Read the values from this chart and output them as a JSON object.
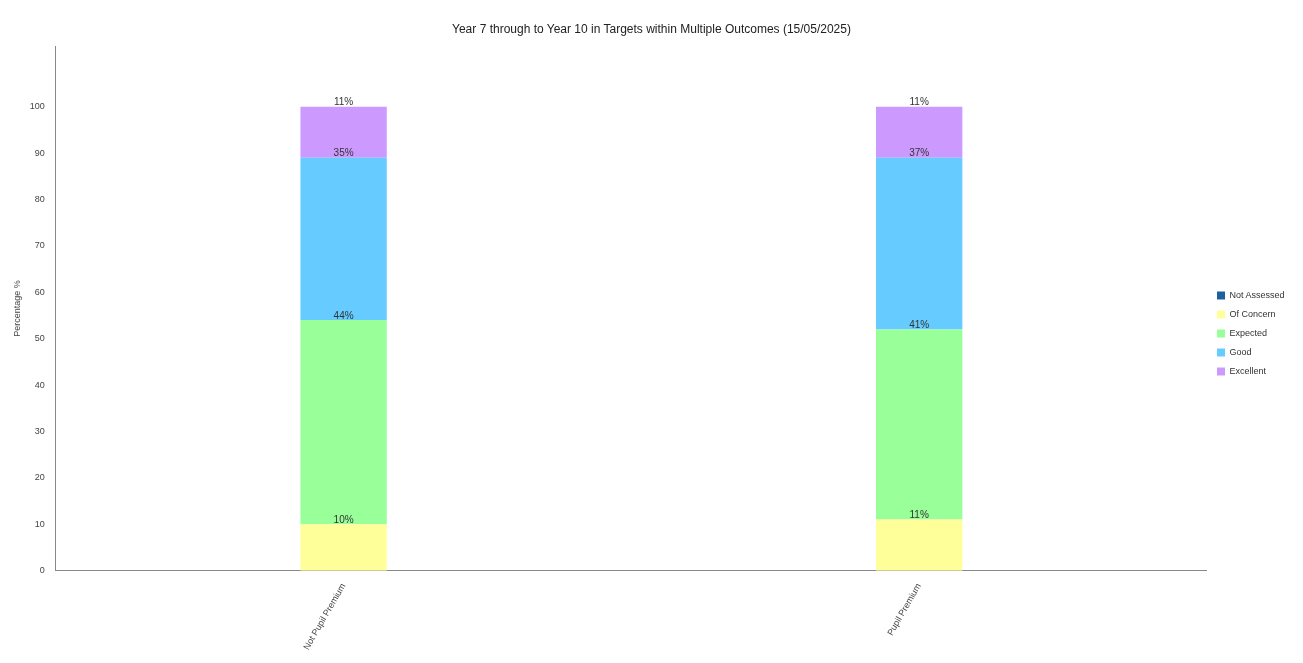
{
  "chart_data": {
    "type": "bar",
    "title": "Year 7 through to Year 10 in Targets within Multiple Outcomes (15/05/2025)",
    "ylabel": "Percentage %",
    "categories": [
      "Not Pupil Premium",
      "Pupil Premium"
    ],
    "stacked": true,
    "series": [
      {
        "name": "Not Assessed",
        "color": "#1f5f9f",
        "values": [
          0,
          0
        ],
        "value_labels": [
          null,
          null
        ]
      },
      {
        "name": "Of Concern",
        "color": "#ffff99",
        "values": [
          10,
          11
        ],
        "value_labels": [
          "10%",
          "11%"
        ]
      },
      {
        "name": "Expected",
        "color": "#99ff99",
        "values": [
          44,
          41
        ],
        "value_labels": [
          "44%",
          "41%"
        ]
      },
      {
        "name": "Good",
        "color": "#66ccff",
        "values": [
          35,
          37
        ],
        "value_labels": [
          "35%",
          "37%"
        ]
      },
      {
        "name": "Excellent",
        "color": "#cc99ff",
        "values": [
          11,
          11
        ],
        "value_labels": [
          "11%",
          "11%"
        ]
      }
    ],
    "ylim": [
      0,
      113
    ],
    "yticks": [
      0,
      10,
      20,
      30,
      40,
      50,
      60,
      70,
      80,
      90,
      100
    ],
    "grid": false,
    "legend": "right"
  }
}
